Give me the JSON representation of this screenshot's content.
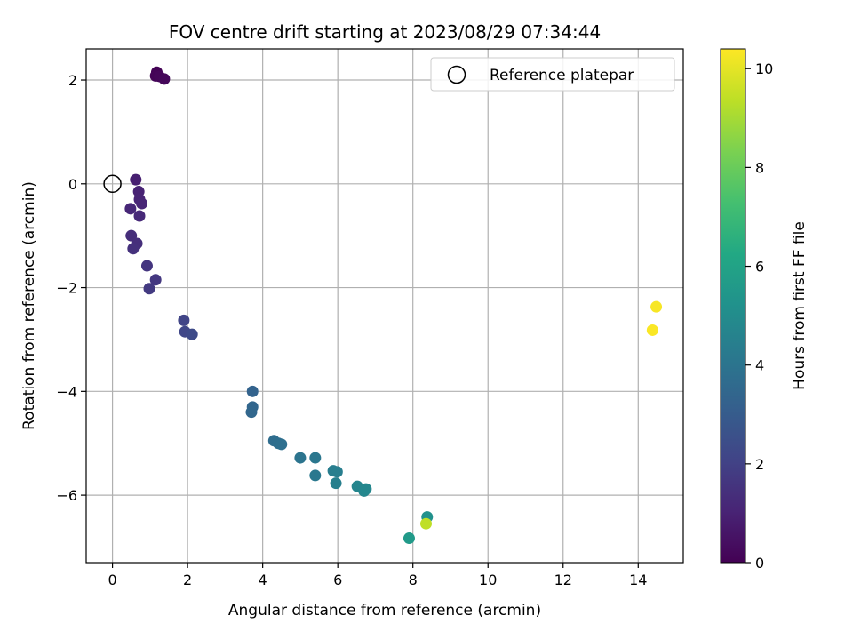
{
  "chart_data": {
    "type": "scatter",
    "title": "FOV centre drift starting at 2023/08/29 07:34:44",
    "xlabel": "Angular distance from reference (arcmin)",
    "ylabel": "Rotation from reference (arcmin)",
    "xlim": [
      -0.7,
      15.2
    ],
    "ylim": [
      -7.3,
      2.6
    ],
    "xticks": [
      0,
      2,
      4,
      6,
      8,
      10,
      12,
      14
    ],
    "yticks": [
      -6,
      -4,
      -2,
      0,
      2
    ],
    "grid": true,
    "legend": {
      "position": "top-right",
      "entries": [
        {
          "label": "Reference platepar",
          "marker": "open-circle",
          "color": "#000000"
        }
      ]
    },
    "reference_point": {
      "x": 0,
      "y": 0
    },
    "colorbar": {
      "label": "Hours from first FF file",
      "range": [
        0,
        10.4
      ],
      "ticks": [
        0,
        2,
        4,
        6,
        8,
        10
      ],
      "colormap": "viridis"
    },
    "points": [
      {
        "x": 1.18,
        "y": 2.15,
        "c": 0.05
      },
      {
        "x": 1.15,
        "y": 2.08,
        "c": 0.1
      },
      {
        "x": 1.25,
        "y": 2.07,
        "c": 0.15
      },
      {
        "x": 1.38,
        "y": 2.02,
        "c": 0.2
      },
      {
        "x": 0.62,
        "y": 0.08,
        "c": 0.9
      },
      {
        "x": 0.7,
        "y": -0.15,
        "c": 1.0
      },
      {
        "x": 0.72,
        "y": -0.3,
        "c": 1.05
      },
      {
        "x": 0.78,
        "y": -0.38,
        "c": 1.1
      },
      {
        "x": 0.48,
        "y": -0.48,
        "c": 1.15
      },
      {
        "x": 0.72,
        "y": -0.62,
        "c": 1.2
      },
      {
        "x": 0.5,
        "y": -1.0,
        "c": 1.35
      },
      {
        "x": 0.65,
        "y": -1.15,
        "c": 1.4
      },
      {
        "x": 0.55,
        "y": -1.25,
        "c": 1.45
      },
      {
        "x": 0.92,
        "y": -1.58,
        "c": 1.6
      },
      {
        "x": 1.15,
        "y": -1.85,
        "c": 1.7
      },
      {
        "x": 0.98,
        "y": -2.02,
        "c": 1.75
      },
      {
        "x": 1.9,
        "y": -2.63,
        "c": 2.1
      },
      {
        "x": 1.93,
        "y": -2.85,
        "c": 2.2
      },
      {
        "x": 2.12,
        "y": -2.9,
        "c": 2.3
      },
      {
        "x": 3.73,
        "y": -4.0,
        "c": 3.3
      },
      {
        "x": 3.73,
        "y": -4.3,
        "c": 3.4
      },
      {
        "x": 3.7,
        "y": -4.4,
        "c": 3.45
      },
      {
        "x": 4.3,
        "y": -4.95,
        "c": 3.7
      },
      {
        "x": 4.42,
        "y": -5.0,
        "c": 3.75
      },
      {
        "x": 4.5,
        "y": -5.02,
        "c": 3.8
      },
      {
        "x": 5.0,
        "y": -5.28,
        "c": 4.0
      },
      {
        "x": 5.4,
        "y": -5.28,
        "c": 4.1
      },
      {
        "x": 5.4,
        "y": -5.62,
        "c": 4.15
      },
      {
        "x": 5.88,
        "y": -5.53,
        "c": 4.35
      },
      {
        "x": 5.98,
        "y": -5.55,
        "c": 4.4
      },
      {
        "x": 5.95,
        "y": -5.77,
        "c": 4.45
      },
      {
        "x": 6.52,
        "y": -5.83,
        "c": 4.7
      },
      {
        "x": 6.7,
        "y": -5.92,
        "c": 4.75
      },
      {
        "x": 6.75,
        "y": -5.88,
        "c": 4.8
      },
      {
        "x": 8.38,
        "y": -6.42,
        "c": 5.2
      },
      {
        "x": 7.9,
        "y": -6.83,
        "c": 5.6
      },
      {
        "x": 8.35,
        "y": -6.55,
        "c": 9.4
      },
      {
        "x": 14.48,
        "y": -2.37,
        "c": 10.3
      },
      {
        "x": 14.38,
        "y": -2.82,
        "c": 10.35
      }
    ]
  }
}
